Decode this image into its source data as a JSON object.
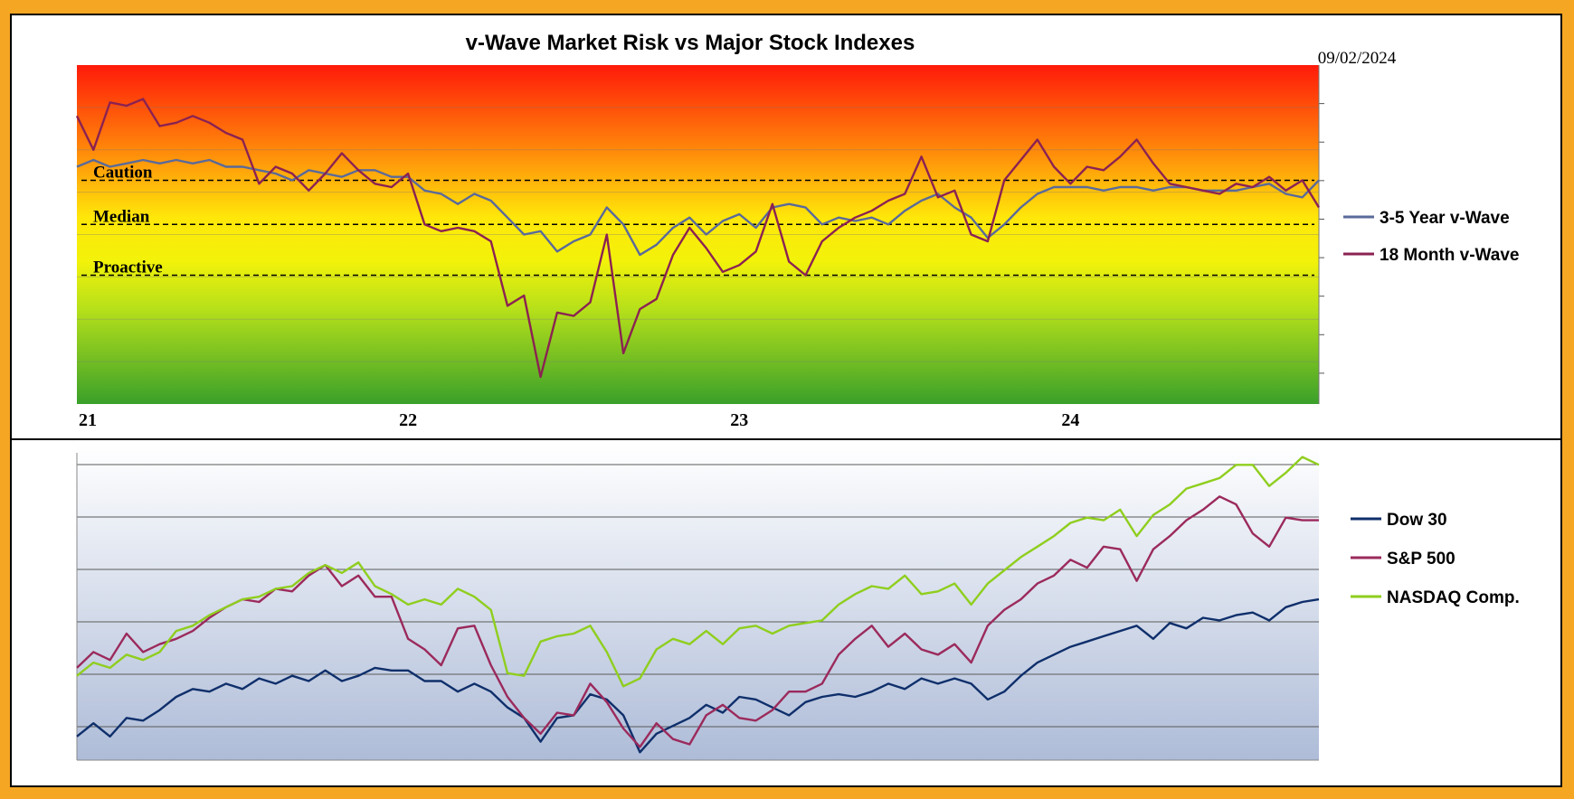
{
  "title": "v-Wave Market Risk vs Major Stock Indexes",
  "date": "09/02/2024",
  "colors": {
    "background": "#f5a623",
    "wave_3_5": "#5a6a9a",
    "wave_18": "#8b2252",
    "dow": "#0f2f6b",
    "sp500": "#9b2a5c",
    "nasdaq": "#8fce1e"
  },
  "chart_data": [
    {
      "type": "line",
      "title": "v-Wave Market Risk vs Major Stock Indexes",
      "x_tick_labels": [
        "21",
        "22",
        "23",
        "24"
      ],
      "x_ticks": [
        0,
        1,
        2,
        3
      ],
      "x_range": [
        0,
        3.75
      ],
      "ylim": [
        0,
        10
      ],
      "grid": true,
      "legend_position": "right",
      "background": "red-to-green vertical gradient",
      "reference_lines": [
        {
          "label": "Caution",
          "y": 6.6
        },
        {
          "label": "Median",
          "y": 5.3
        },
        {
          "label": "Proactive",
          "y": 3.8
        }
      ],
      "series": [
        {
          "name": "3-5 Year v-Wave",
          "color": "#5a6a9a",
          "x": [
            0,
            0.05,
            0.1,
            0.15,
            0.2,
            0.25,
            0.3,
            0.35,
            0.4,
            0.45,
            0.5,
            0.55,
            0.6,
            0.65,
            0.7,
            0.75,
            0.8,
            0.85,
            0.9,
            0.95,
            1,
            1.05,
            1.1,
            1.15,
            1.2,
            1.25,
            1.3,
            1.35,
            1.4,
            1.45,
            1.5,
            1.55,
            1.6,
            1.65,
            1.7,
            1.75,
            1.8,
            1.85,
            1.9,
            1.95,
            2,
            2.05,
            2.1,
            2.15,
            2.2,
            2.25,
            2.3,
            2.35,
            2.4,
            2.45,
            2.5,
            2.55,
            2.6,
            2.65,
            2.7,
            2.75,
            2.8,
            2.85,
            2.9,
            2.95,
            3,
            3.05,
            3.1,
            3.15,
            3.2,
            3.25,
            3.3,
            3.35,
            3.4,
            3.45,
            3.5,
            3.55,
            3.6,
            3.65,
            3.7,
            3.75
          ],
          "values": [
            7.0,
            7.2,
            7.0,
            7.1,
            7.2,
            7.1,
            7.2,
            7.1,
            7.2,
            7.0,
            7.0,
            6.9,
            6.8,
            6.6,
            6.9,
            6.8,
            6.7,
            6.9,
            6.9,
            6.7,
            6.7,
            6.3,
            6.2,
            5.9,
            6.2,
            6.0,
            5.5,
            5.0,
            5.1,
            4.5,
            4.8,
            5.0,
            5.8,
            5.3,
            4.4,
            4.7,
            5.2,
            5.5,
            5.0,
            5.4,
            5.6,
            5.2,
            5.8,
            5.9,
            5.8,
            5.3,
            5.5,
            5.4,
            5.5,
            5.3,
            5.7,
            6.0,
            6.2,
            5.8,
            5.5,
            4.9,
            5.3,
            5.8,
            6.2,
            6.4,
            6.4,
            6.4,
            6.3,
            6.4,
            6.4,
            6.3,
            6.4,
            6.4,
            6.3,
            6.3,
            6.3,
            6.4,
            6.5,
            6.2,
            6.1,
            6.6
          ]
        },
        {
          "name": "18 Month v-Wave",
          "color": "#8b2252",
          "x": [
            0,
            0.05,
            0.1,
            0.15,
            0.2,
            0.25,
            0.3,
            0.35,
            0.4,
            0.45,
            0.5,
            0.55,
            0.6,
            0.65,
            0.7,
            0.75,
            0.8,
            0.85,
            0.9,
            0.95,
            1,
            1.05,
            1.1,
            1.15,
            1.2,
            1.25,
            1.3,
            1.35,
            1.4,
            1.45,
            1.5,
            1.55,
            1.6,
            1.65,
            1.7,
            1.75,
            1.8,
            1.85,
            1.9,
            1.95,
            2,
            2.05,
            2.1,
            2.15,
            2.2,
            2.25,
            2.3,
            2.35,
            2.4,
            2.45,
            2.5,
            2.55,
            2.6,
            2.65,
            2.7,
            2.75,
            2.8,
            2.85,
            2.9,
            2.95,
            3,
            3.05,
            3.1,
            3.15,
            3.2,
            3.25,
            3.3,
            3.35,
            3.4,
            3.45,
            3.5,
            3.55,
            3.6,
            3.65,
            3.7,
            3.75
          ],
          "values": [
            8.5,
            7.5,
            8.9,
            8.8,
            9.0,
            8.2,
            8.3,
            8.5,
            8.3,
            8.0,
            7.8,
            6.5,
            7.0,
            6.8,
            6.3,
            6.8,
            7.4,
            6.9,
            6.5,
            6.4,
            6.8,
            5.3,
            5.1,
            5.2,
            5.1,
            4.8,
            2.9,
            3.2,
            0.8,
            2.7,
            2.6,
            3.0,
            5.0,
            1.5,
            2.8,
            3.1,
            4.4,
            5.2,
            4.6,
            3.9,
            4.1,
            4.5,
            5.9,
            4.2,
            3.8,
            4.8,
            5.2,
            5.5,
            5.7,
            6.0,
            6.2,
            7.3,
            6.1,
            6.3,
            5.0,
            4.8,
            6.6,
            7.2,
            7.8,
            7.0,
            6.5,
            7.0,
            6.9,
            7.3,
            7.8,
            7.1,
            6.5,
            6.4,
            6.3,
            6.2,
            6.5,
            6.4,
            6.7,
            6.3,
            6.6,
            5.8
          ]
        }
      ]
    },
    {
      "type": "line",
      "x_range": [
        0,
        3.75
      ],
      "ylim": [
        0,
        6
      ],
      "grid": true,
      "legend_position": "right",
      "series": [
        {
          "name": "Dow 30",
          "color": "#0f2f6b",
          "x": [
            0,
            0.05,
            0.1,
            0.15,
            0.2,
            0.25,
            0.3,
            0.35,
            0.4,
            0.45,
            0.5,
            0.55,
            0.6,
            0.65,
            0.7,
            0.75,
            0.8,
            0.85,
            0.9,
            0.95,
            1,
            1.05,
            1.1,
            1.15,
            1.2,
            1.25,
            1.3,
            1.35,
            1.4,
            1.45,
            1.5,
            1.55,
            1.6,
            1.65,
            1.7,
            1.75,
            1.8,
            1.85,
            1.9,
            1.95,
            2,
            2.05,
            2.1,
            2.15,
            2.2,
            2.25,
            2.3,
            2.35,
            2.4,
            2.45,
            2.5,
            2.55,
            2.6,
            2.65,
            2.7,
            2.75,
            2.8,
            2.85,
            2.9,
            2.95,
            3,
            3.05,
            3.1,
            3.15,
            3.2,
            3.25,
            3.3,
            3.35,
            3.4,
            3.45,
            3.5,
            3.55,
            3.6,
            3.65,
            3.7,
            3.75
          ],
          "values": [
            0.45,
            0.7,
            0.45,
            0.8,
            0.75,
            0.95,
            1.2,
            1.35,
            1.3,
            1.45,
            1.35,
            1.55,
            1.45,
            1.6,
            1.5,
            1.7,
            1.5,
            1.6,
            1.75,
            1.7,
            1.7,
            1.5,
            1.5,
            1.3,
            1.45,
            1.3,
            1.0,
            0.8,
            0.35,
            0.8,
            0.85,
            1.25,
            1.15,
            0.85,
            0.15,
            0.5,
            0.65,
            0.8,
            1.05,
            0.9,
            1.2,
            1.15,
            1.0,
            0.85,
            1.1,
            1.2,
            1.25,
            1.2,
            1.3,
            1.45,
            1.35,
            1.55,
            1.45,
            1.55,
            1.45,
            1.15,
            1.3,
            1.6,
            1.85,
            2.0,
            2.15,
            2.25,
            2.35,
            2.45,
            2.55,
            2.3,
            2.6,
            2.5,
            2.7,
            2.65,
            2.75,
            2.8,
            2.65,
            2.9,
            3.0,
            3.05
          ]
        },
        {
          "name": "S&P 500",
          "color": "#9b2a5c",
          "x": [
            0,
            0.05,
            0.1,
            0.15,
            0.2,
            0.25,
            0.3,
            0.35,
            0.4,
            0.45,
            0.5,
            0.55,
            0.6,
            0.65,
            0.7,
            0.75,
            0.8,
            0.85,
            0.9,
            0.95,
            1,
            1.05,
            1.1,
            1.15,
            1.2,
            1.25,
            1.3,
            1.35,
            1.4,
            1.45,
            1.5,
            1.55,
            1.6,
            1.65,
            1.7,
            1.75,
            1.8,
            1.85,
            1.9,
            1.95,
            2,
            2.05,
            2.1,
            2.15,
            2.2,
            2.25,
            2.3,
            2.35,
            2.4,
            2.45,
            2.5,
            2.55,
            2.6,
            2.65,
            2.7,
            2.75,
            2.8,
            2.85,
            2.9,
            2.95,
            3,
            3.05,
            3.1,
            3.15,
            3.2,
            3.25,
            3.3,
            3.35,
            3.4,
            3.45,
            3.5,
            3.55,
            3.6,
            3.65,
            3.7,
            3.75
          ],
          "values": [
            1.75,
            2.05,
            1.9,
            2.4,
            2.05,
            2.2,
            2.3,
            2.45,
            2.7,
            2.9,
            3.05,
            3.0,
            3.25,
            3.2,
            3.5,
            3.7,
            3.3,
            3.5,
            3.1,
            3.1,
            2.3,
            2.1,
            1.8,
            2.5,
            2.55,
            1.8,
            1.2,
            0.8,
            0.5,
            0.9,
            0.85,
            1.45,
            1.1,
            0.6,
            0.25,
            0.7,
            0.4,
            0.3,
            0.85,
            1.05,
            0.8,
            0.75,
            0.95,
            1.3,
            1.3,
            1.45,
            2.0,
            2.3,
            2.55,
            2.15,
            2.4,
            2.1,
            2.0,
            2.2,
            1.85,
            2.55,
            2.85,
            3.05,
            3.35,
            3.5,
            3.8,
            3.65,
            4.05,
            4.0,
            3.4,
            4.0,
            4.25,
            4.55,
            4.75,
            5.0,
            4.85,
            4.3,
            4.05,
            4.6,
            4.55,
            4.55
          ]
        },
        {
          "name": "NASDAQ Comp.",
          "color": "#8fce1e",
          "x": [
            0,
            0.05,
            0.1,
            0.15,
            0.2,
            0.25,
            0.3,
            0.35,
            0.4,
            0.45,
            0.5,
            0.55,
            0.6,
            0.65,
            0.7,
            0.75,
            0.8,
            0.85,
            0.9,
            0.95,
            1,
            1.05,
            1.1,
            1.15,
            1.2,
            1.25,
            1.3,
            1.35,
            1.4,
            1.45,
            1.5,
            1.55,
            1.6,
            1.65,
            1.7,
            1.75,
            1.8,
            1.85,
            1.9,
            1.95,
            2,
            2.05,
            2.1,
            2.15,
            2.2,
            2.25,
            2.3,
            2.35,
            2.4,
            2.45,
            2.5,
            2.55,
            2.6,
            2.65,
            2.7,
            2.75,
            2.8,
            2.85,
            2.9,
            2.95,
            3,
            3.05,
            3.1,
            3.15,
            3.2,
            3.25,
            3.3,
            3.35,
            3.4,
            3.45,
            3.5,
            3.55,
            3.6,
            3.65,
            3.7,
            3.75
          ],
          "values": [
            1.6,
            1.85,
            1.75,
            2.0,
            1.9,
            2.05,
            2.45,
            2.55,
            2.75,
            2.9,
            3.05,
            3.1,
            3.25,
            3.3,
            3.55,
            3.7,
            3.55,
            3.75,
            3.3,
            3.15,
            2.95,
            3.05,
            2.95,
            3.25,
            3.1,
            2.85,
            1.65,
            1.6,
            2.25,
            2.35,
            2.4,
            2.55,
            2.05,
            1.4,
            1.55,
            2.1,
            2.3,
            2.2,
            2.45,
            2.2,
            2.5,
            2.55,
            2.4,
            2.55,
            2.6,
            2.65,
            2.95,
            3.15,
            3.3,
            3.25,
            3.5,
            3.15,
            3.2,
            3.35,
            2.95,
            3.35,
            3.6,
            3.85,
            4.05,
            4.25,
            4.5,
            4.6,
            4.55,
            4.75,
            4.25,
            4.65,
            4.85,
            5.15,
            5.25,
            5.35,
            5.6,
            5.6,
            5.2,
            5.45,
            5.75,
            5.6
          ]
        }
      ]
    }
  ]
}
